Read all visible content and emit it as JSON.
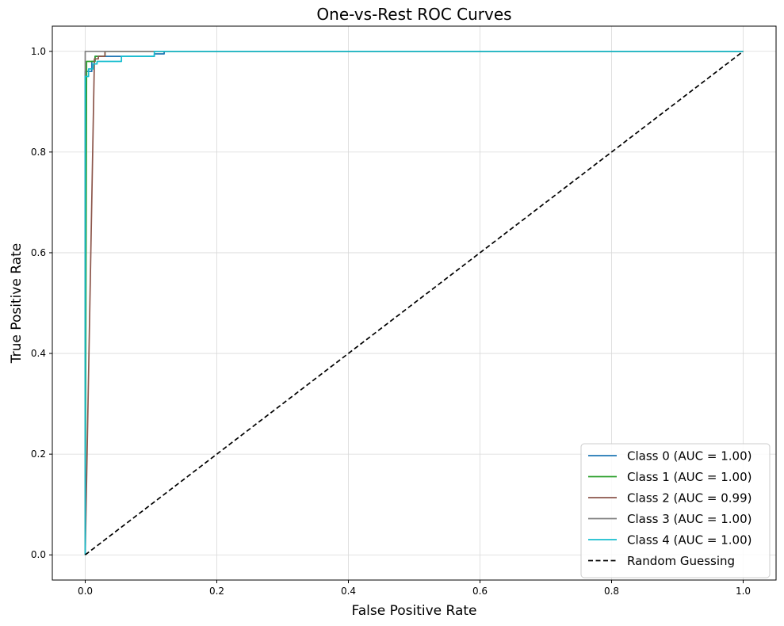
{
  "chart_data": {
    "type": "line",
    "title": "One-vs-Rest ROC Curves",
    "xlabel": "False Positive Rate",
    "ylabel": "True Positive Rate",
    "xlim": [
      -0.05,
      1.05
    ],
    "ylim": [
      -0.05,
      1.05
    ],
    "xticks": [
      0.0,
      0.2,
      0.4,
      0.6,
      0.8,
      1.0
    ],
    "yticks": [
      0.0,
      0.2,
      0.4,
      0.6,
      0.8,
      1.0
    ],
    "xtick_labels": [
      "0.0",
      "0.2",
      "0.4",
      "0.6",
      "0.8",
      "1.0"
    ],
    "ytick_labels": [
      "0.0",
      "0.2",
      "0.4",
      "0.6",
      "0.8",
      "1.0"
    ],
    "grid": true,
    "legend_position": "lower-right",
    "series": [
      {
        "name": "Class 0 (AUC = 1.00)",
        "color": "#1f77b4",
        "style": "solid",
        "points": [
          [
            0,
            0
          ],
          [
            0,
            0.96
          ],
          [
            0.01,
            0.96
          ],
          [
            0.01,
            0.98
          ],
          [
            0.015,
            0.98
          ],
          [
            0.015,
            0.99
          ],
          [
            0.105,
            0.99
          ],
          [
            0.105,
            0.995
          ],
          [
            0.12,
            0.995
          ],
          [
            0.12,
            1.0
          ],
          [
            1.0,
            1.0
          ]
        ]
      },
      {
        "name": "Class 1 (AUC = 1.00)",
        "color": "#2ca02c",
        "style": "solid",
        "points": [
          [
            0,
            0
          ],
          [
            0.002,
            0.95
          ],
          [
            0.002,
            0.98
          ],
          [
            0.015,
            0.98
          ],
          [
            0.015,
            0.99
          ],
          [
            0.03,
            0.99
          ],
          [
            0.03,
            1.0
          ],
          [
            1.0,
            1.0
          ]
        ]
      },
      {
        "name": "Class 2 (AUC = 0.99)",
        "color": "#8c564b",
        "style": "solid",
        "points": [
          [
            0,
            0
          ],
          [
            0.014,
            0.985
          ],
          [
            0.02,
            0.985
          ],
          [
            0.02,
            0.99
          ],
          [
            0.03,
            0.99
          ],
          [
            0.03,
            1.0
          ],
          [
            1.0,
            1.0
          ]
        ]
      },
      {
        "name": "Class 3 (AUC = 1.00)",
        "color": "#7f7f7f",
        "style": "solid",
        "points": [
          [
            0,
            0
          ],
          [
            0,
            1.0
          ],
          [
            1.0,
            1.0
          ]
        ]
      },
      {
        "name": "Class 4 (AUC = 1.00)",
        "color": "#17becf",
        "style": "solid",
        "points": [
          [
            0,
            0
          ],
          [
            0,
            0.95
          ],
          [
            0.005,
            0.95
          ],
          [
            0.005,
            0.965
          ],
          [
            0.012,
            0.965
          ],
          [
            0.012,
            0.975
          ],
          [
            0.018,
            0.975
          ],
          [
            0.018,
            0.98
          ],
          [
            0.055,
            0.98
          ],
          [
            0.055,
            0.99
          ],
          [
            0.105,
            0.99
          ],
          [
            0.105,
            1.0
          ],
          [
            1.0,
            1.0
          ]
        ]
      },
      {
        "name": "Random Guessing",
        "color": "#000000",
        "style": "dashed",
        "points": [
          [
            0,
            0
          ],
          [
            1.0,
            1.0
          ]
        ]
      }
    ]
  }
}
